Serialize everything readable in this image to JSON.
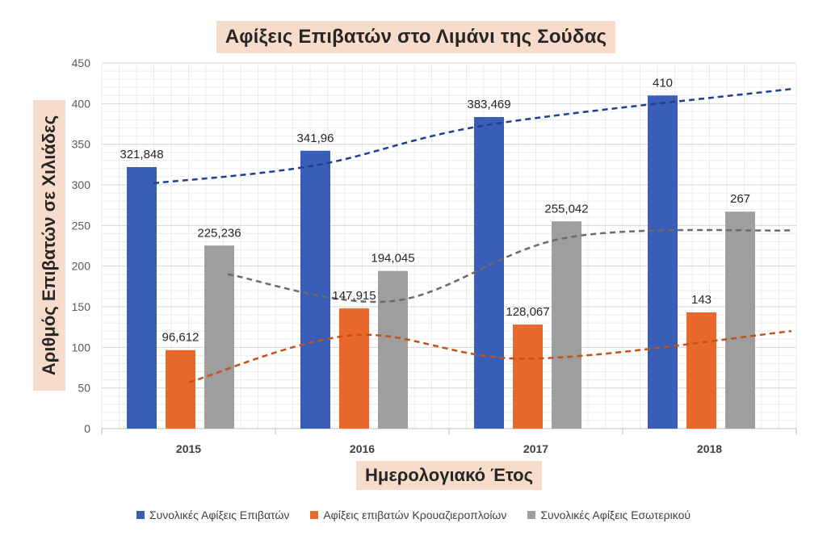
{
  "chart_data": {
    "type": "bar",
    "title": "Αφίξεις Επιβατών στο Λιμάνι της Σούδας",
    "xlabel": "Ημερολογιακό Έτος",
    "ylabel": "Αριθμός Επιβατών σε Χιλιάδες",
    "categories": [
      "2015",
      "2016",
      "2017",
      "2018"
    ],
    "ylim": [
      0,
      450
    ],
    "yticks": [
      0,
      50,
      100,
      150,
      200,
      250,
      300,
      350,
      400,
      450
    ],
    "grid": true,
    "legend_position": "bottom",
    "trendlines": "dashed polynomial trendline per series",
    "series": [
      {
        "name": "Συνολικές Αφίξεις Επιβατών",
        "values": [
          321.848,
          341.96,
          383.469,
          410
        ],
        "labels": [
          "321,848",
          "341,96",
          "383,469",
          "410"
        ],
        "color": "#3a5eb8",
        "trend_color": "#203f8f",
        "trend_values": [
          302,
          324,
          374,
          418
        ]
      },
      {
        "name": "Αφίξεις επιβατών Κρουαζιεροπλοίων",
        "values": [
          96.612,
          147.915,
          128.067,
          143
        ],
        "labels": [
          "96,612",
          "147,915",
          "128,067",
          "143"
        ],
        "color": "#e8692a",
        "trend_color": "#c2521c",
        "trend_values": [
          57,
          115,
          86,
          120
        ]
      },
      {
        "name": "Συνολικές Αφίξεις Εσωτερικού",
        "values": [
          225.236,
          194.045,
          255.042,
          267
        ],
        "labels": [
          "225,236",
          "194,045",
          "255,042",
          "267"
        ],
        "color": "#9e9e9e",
        "trend_color": "#6b6b6b",
        "trend_values": [
          190,
          157,
          235,
          244
        ]
      }
    ]
  }
}
